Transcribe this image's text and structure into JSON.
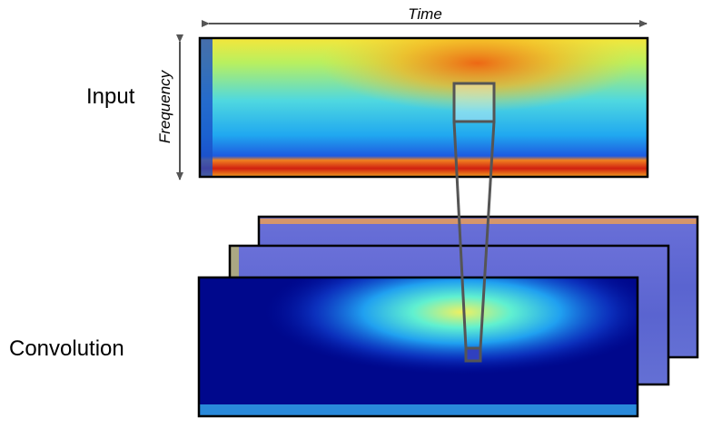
{
  "labels": {
    "time_axis": "Time",
    "frequency_axis": "Frequency",
    "input": "Input",
    "convolution": "Convolution"
  },
  "colors": {
    "arrow": "#555555",
    "frame": "#000000",
    "receptive_field": "#555555"
  },
  "feature_maps": {
    "count": 3
  }
}
